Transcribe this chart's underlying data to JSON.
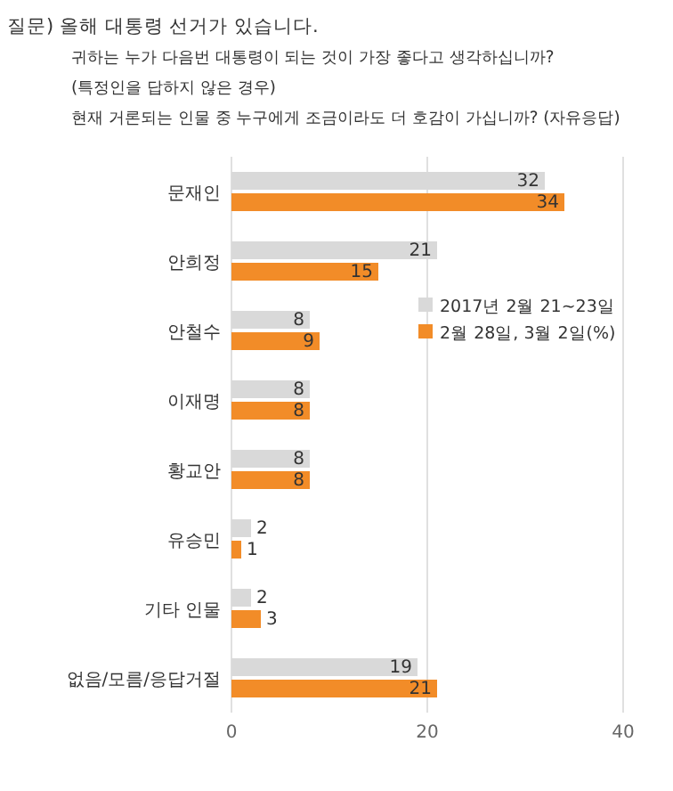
{
  "chart_data": {
    "type": "bar",
    "orientation": "horizontal",
    "title": "질문) 올해 대통령 선거가 있습니다.",
    "annotations": [
      "귀하는 누가 다음번 대통령이 되는 것이 가장 좋다고 생각하십니까?",
      "(특정인을 답하지 않은 경우)",
      "현재 거론되는 인물 중 누구에게 조금이라도 더 호감이 가십니까? (자유응답)"
    ],
    "categories": [
      "문재인",
      "안희정",
      "안철수",
      "이재명",
      "황교안",
      "유승민",
      "기타 인물",
      "없음/모름/응답거절"
    ],
    "series": [
      {
        "name": "2017년 2월 21~23일",
        "color": "#d9d9d9",
        "values": [
          32,
          21,
          8,
          8,
          8,
          2,
          2,
          19
        ]
      },
      {
        "name": "2월 28일, 3월 2일(%)",
        "color": "#f28c28",
        "values": [
          34,
          15,
          9,
          8,
          8,
          1,
          3,
          21
        ]
      }
    ],
    "xlim": [
      0,
      40
    ],
    "xticks": [
      0,
      20,
      40
    ],
    "grid": "x",
    "legend": "right",
    "data_labels": true
  }
}
